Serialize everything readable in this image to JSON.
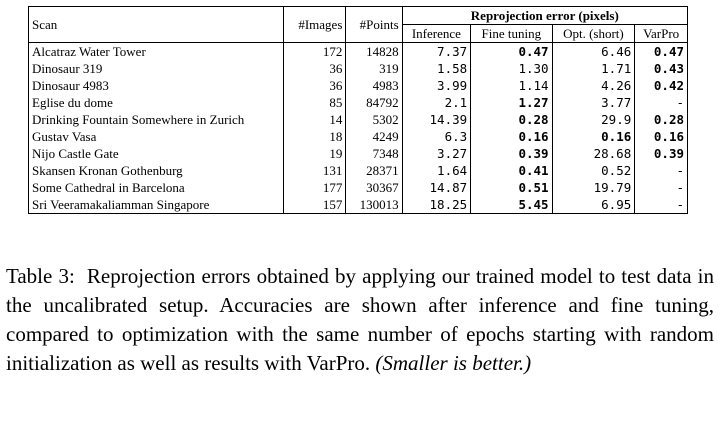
{
  "table": {
    "headers": {
      "scan": "Scan",
      "images": "#Images",
      "points": "#Points",
      "group": "Reprojection error (pixels)",
      "inference": "Inference",
      "fine_tuning": "Fine tuning",
      "opt_short": "Opt. (short)",
      "varpro": "VarPro"
    },
    "rows": [
      {
        "scan": "Alcatraz Water Tower",
        "images": "172",
        "points": "14828",
        "inference": "7.37",
        "fine_tuning": "0.47",
        "opt_short": "6.46",
        "varpro": "0.47",
        "bold": [
          "fine_tuning",
          "varpro"
        ]
      },
      {
        "scan": "Dinosaur 319",
        "images": "36",
        "points": "319",
        "inference": "1.58",
        "fine_tuning": "1.30",
        "opt_short": "1.71",
        "varpro": "0.43",
        "bold": [
          "varpro"
        ]
      },
      {
        "scan": "Dinosaur 4983",
        "images": "36",
        "points": "4983",
        "inference": "3.99",
        "fine_tuning": "1.14",
        "opt_short": "4.26",
        "varpro": "0.42",
        "bold": [
          "varpro"
        ]
      },
      {
        "scan": "Eglise du dome",
        "images": "85",
        "points": "84792",
        "inference": "2.1",
        "fine_tuning": "1.27",
        "opt_short": "3.77",
        "varpro": "-",
        "bold": [
          "fine_tuning"
        ]
      },
      {
        "scan": "Drinking Fountain Somewhere in Zurich",
        "images": "14",
        "points": "5302",
        "inference": "14.39",
        "fine_tuning": "0.28",
        "opt_short": "29.9",
        "varpro": "0.28",
        "bold": [
          "fine_tuning",
          "varpro"
        ]
      },
      {
        "scan": "Gustav Vasa",
        "images": "18",
        "points": "4249",
        "inference": "6.3",
        "fine_tuning": "0.16",
        "opt_short": "0.16",
        "varpro": "0.16",
        "bold": [
          "fine_tuning",
          "opt_short",
          "varpro"
        ]
      },
      {
        "scan": "Nijo Castle Gate",
        "images": "19",
        "points": "7348",
        "inference": "3.27",
        "fine_tuning": "0.39",
        "opt_short": "28.68",
        "varpro": "0.39",
        "bold": [
          "fine_tuning",
          "varpro"
        ]
      },
      {
        "scan": "Skansen Kronan Gothenburg",
        "images": "131",
        "points": "28371",
        "inference": "1.64",
        "fine_tuning": "0.41",
        "opt_short": "0.52",
        "varpro": "-",
        "bold": [
          "fine_tuning"
        ]
      },
      {
        "scan": "Some Cathedral in Barcelona",
        "images": "177",
        "points": "30367",
        "inference": "14.87",
        "fine_tuning": "0.51",
        "opt_short": "19.79",
        "varpro": "-",
        "bold": [
          "fine_tuning"
        ]
      },
      {
        "scan": "Sri Veeramakaliamman Singapore",
        "images": "157",
        "points": "130013",
        "inference": "18.25",
        "fine_tuning": "5.45",
        "opt_short": "6.95",
        "varpro": "-",
        "bold": [
          "fine_tuning"
        ]
      }
    ]
  },
  "caption": {
    "label": "Table 3:",
    "text": "Reprojection errors obtained by applying our trained model to test data in the uncalibrated setup. Accuracies are shown after inference and fine tuning, compared to optimization with the same number of epochs starting with random initialization as well as results with VarPro.",
    "note": "(Smaller is better.)"
  }
}
